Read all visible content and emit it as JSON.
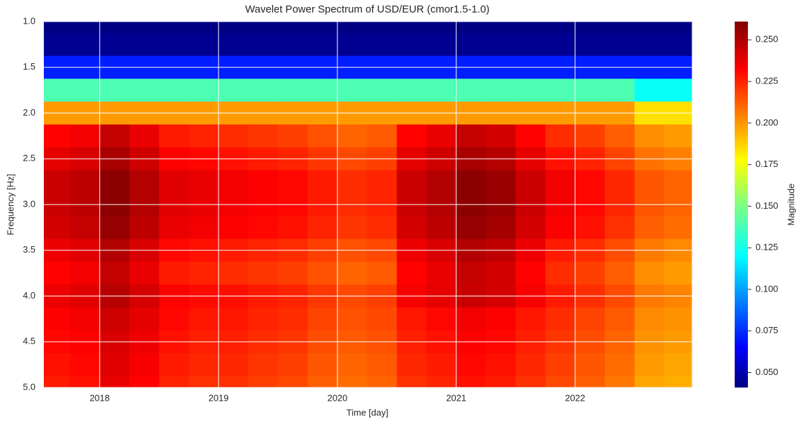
{
  "chart_data": {
    "type": "heatmap",
    "title": "Wavelet Power Spectrum of USD/EUR (cmor1.5-1.0)",
    "xlabel": "Time [day]",
    "ylabel": "Frequency [Hz]",
    "colormap": "jet",
    "grid": true,
    "xlim": [
      2017.53,
      2022.98
    ],
    "xticks": [
      2018,
      2019,
      2020,
      2021,
      2022
    ],
    "ylim": [
      5,
      1
    ],
    "yticks": [
      {
        "value": 1,
        "label": "1.0"
      },
      {
        "value": 1.5,
        "label": "1.5"
      },
      {
        "value": 2,
        "label": "2.0"
      },
      {
        "value": 2.5,
        "label": "2.5"
      },
      {
        "value": 3,
        "label": "3.0"
      },
      {
        "value": 3.5,
        "label": "3.5"
      },
      {
        "value": 4,
        "label": "4.0"
      },
      {
        "value": 4.5,
        "label": "4.5"
      },
      {
        "value": 5,
        "label": "5.0"
      }
    ],
    "x": [
      2017.625,
      2017.875,
      2018.125,
      2018.375,
      2018.625,
      2018.875,
      2019.125,
      2019.375,
      2019.625,
      2019.875,
      2020.125,
      2020.375,
      2020.625,
      2020.875,
      2021.125,
      2021.375,
      2021.625,
      2021.875,
      2022.125,
      2022.375,
      2022.625,
      2022.875
    ],
    "y": [
      1,
      1.25,
      1.5,
      1.75,
      2,
      2.25,
      2.5,
      2.75,
      3,
      3.25,
      3.5,
      3.75,
      4,
      4.25,
      4.5,
      4.75,
      5
    ],
    "z": [
      [
        0.042,
        0.042,
        0.042,
        0.042,
        0.042,
        0.042,
        0.042,
        0.042,
        0.042,
        0.042,
        0.042,
        0.042,
        0.042,
        0.042,
        0.042,
        0.042,
        0.042,
        0.042,
        0.042,
        0.042,
        0.042,
        0.042
      ],
      [
        0.045,
        0.045,
        0.045,
        0.045,
        0.045,
        0.045,
        0.045,
        0.045,
        0.045,
        0.045,
        0.045,
        0.045,
        0.045,
        0.045,
        0.045,
        0.045,
        0.045,
        0.045,
        0.045,
        0.045,
        0.045,
        0.045
      ],
      [
        0.075,
        0.075,
        0.075,
        0.075,
        0.075,
        0.075,
        0.075,
        0.075,
        0.075,
        0.075,
        0.075,
        0.075,
        0.075,
        0.075,
        0.075,
        0.075,
        0.075,
        0.075,
        0.075,
        0.075,
        0.075,
        0.075
      ],
      [
        0.14,
        0.14,
        0.14,
        0.14,
        0.14,
        0.14,
        0.14,
        0.14,
        0.14,
        0.14,
        0.14,
        0.14,
        0.14,
        0.14,
        0.14,
        0.14,
        0.14,
        0.14,
        0.14,
        0.14,
        0.125,
        0.125
      ],
      [
        0.2,
        0.2,
        0.2,
        0.2,
        0.2,
        0.2,
        0.2,
        0.2,
        0.2,
        0.2,
        0.2,
        0.2,
        0.2,
        0.2,
        0.2,
        0.2,
        0.2,
        0.2,
        0.2,
        0.2,
        0.185,
        0.185
      ],
      [
        0.233,
        0.236,
        0.246,
        0.238,
        0.228,
        0.226,
        0.224,
        0.222,
        0.22,
        0.216,
        0.212,
        0.214,
        0.233,
        0.238,
        0.246,
        0.243,
        0.233,
        0.224,
        0.22,
        0.213,
        0.203,
        0.2
      ],
      [
        0.239,
        0.242,
        0.252,
        0.244,
        0.234,
        0.232,
        0.23,
        0.228,
        0.226,
        0.222,
        0.218,
        0.22,
        0.239,
        0.244,
        0.252,
        0.249,
        0.239,
        0.23,
        0.226,
        0.219,
        0.209,
        0.206
      ],
      [
        0.245,
        0.248,
        0.258,
        0.25,
        0.24,
        0.238,
        0.236,
        0.234,
        0.232,
        0.228,
        0.224,
        0.226,
        0.245,
        0.25,
        0.258,
        0.255,
        0.245,
        0.236,
        0.232,
        0.225,
        0.215,
        0.212
      ],
      [
        0.245,
        0.248,
        0.258,
        0.25,
        0.24,
        0.238,
        0.236,
        0.234,
        0.232,
        0.228,
        0.224,
        0.226,
        0.245,
        0.25,
        0.258,
        0.255,
        0.245,
        0.236,
        0.232,
        0.225,
        0.215,
        0.212
      ],
      [
        0.243,
        0.246,
        0.256,
        0.248,
        0.238,
        0.236,
        0.234,
        0.232,
        0.23,
        0.226,
        0.222,
        0.224,
        0.243,
        0.248,
        0.256,
        0.253,
        0.243,
        0.234,
        0.23,
        0.223,
        0.213,
        0.21
      ],
      [
        0.237,
        0.24,
        0.25,
        0.242,
        0.232,
        0.23,
        0.228,
        0.226,
        0.224,
        0.22,
        0.216,
        0.218,
        0.237,
        0.242,
        0.25,
        0.247,
        0.237,
        0.228,
        0.224,
        0.217,
        0.207,
        0.204
      ],
      [
        0.233,
        0.236,
        0.246,
        0.238,
        0.228,
        0.226,
        0.224,
        0.222,
        0.22,
        0.216,
        0.212,
        0.214,
        0.233,
        0.238,
        0.246,
        0.243,
        0.233,
        0.224,
        0.22,
        0.213,
        0.203,
        0.2
      ],
      [
        0.2375,
        0.24,
        0.249,
        0.2425,
        0.234,
        0.2315,
        0.2305,
        0.228,
        0.226,
        0.2215,
        0.218,
        0.22,
        0.235,
        0.239,
        0.245,
        0.2425,
        0.235,
        0.228,
        0.2235,
        0.2175,
        0.2075,
        0.205
      ],
      [
        0.234,
        0.236,
        0.244,
        0.239,
        0.232,
        0.229,
        0.229,
        0.226,
        0.224,
        0.219,
        0.216,
        0.218,
        0.229,
        0.232,
        0.236,
        0.234,
        0.229,
        0.224,
        0.219,
        0.214,
        0.204,
        0.202
      ],
      [
        0.232,
        0.234,
        0.242,
        0.237,
        0.23,
        0.227,
        0.227,
        0.224,
        0.222,
        0.217,
        0.214,
        0.216,
        0.227,
        0.23,
        0.234,
        0.232,
        0.227,
        0.222,
        0.217,
        0.212,
        0.202,
        0.2
      ],
      [
        0.23,
        0.232,
        0.24,
        0.235,
        0.228,
        0.225,
        0.225,
        0.222,
        0.22,
        0.215,
        0.212,
        0.214,
        0.225,
        0.228,
        0.232,
        0.23,
        0.225,
        0.22,
        0.215,
        0.21,
        0.2,
        0.198
      ],
      [
        0.228,
        0.23,
        0.238,
        0.233,
        0.226,
        0.223,
        0.223,
        0.22,
        0.218,
        0.213,
        0.21,
        0.212,
        0.223,
        0.226,
        0.23,
        0.228,
        0.223,
        0.218,
        0.213,
        0.208,
        0.198,
        0.196
      ]
    ],
    "colorbar": {
      "label": "Magnitude",
      "zlim": [
        0.041,
        0.261
      ],
      "ticks": [
        {
          "value": 0.05,
          "label": "0.050"
        },
        0.075,
        {
          "value": 0.1,
          "label": "0.100"
        },
        0.125,
        {
          "value": 0.15,
          "label": "0.150"
        },
        0.175,
        {
          "value": 0.2,
          "label": "0.200"
        },
        0.225,
        {
          "value": 0.25,
          "label": "0.250"
        }
      ]
    }
  }
}
